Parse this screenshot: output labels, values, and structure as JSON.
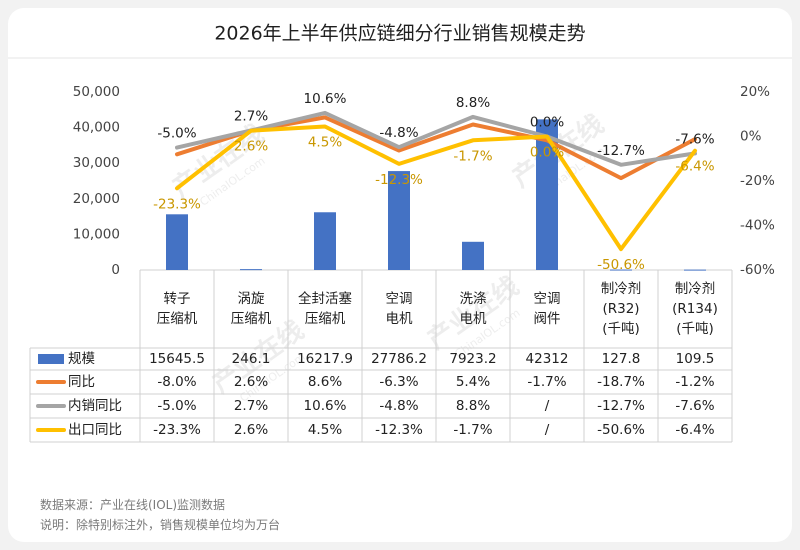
{
  "chart_data": {
    "type": "bar",
    "title": "2026年上半年供应链细分行业销售规模走势",
    "categories": [
      [
        "转子",
        "压缩机"
      ],
      [
        "涡旋",
        "压缩机"
      ],
      [
        "全封活塞",
        "压缩机"
      ],
      [
        "空调",
        "电机"
      ],
      [
        "洗涤",
        "电机"
      ],
      [
        "空调",
        "阀件"
      ],
      [
        "制冷剂",
        "(R32)",
        "(千吨)"
      ],
      [
        "制冷剂",
        "(R134)",
        "(千吨)"
      ]
    ],
    "y_left": {
      "min": 0,
      "max": 50000,
      "ticks": [
        "0",
        "10,000",
        "20,000",
        "30,000",
        "40,000",
        "50,000"
      ]
    },
    "y_right": {
      "min": -60,
      "max": 20,
      "ticks": [
        "-60%",
        "-40%",
        "-20%",
        "0%",
        "20%"
      ]
    },
    "series": [
      {
        "name": "规模",
        "kind": "bar",
        "axis": "left",
        "color": "#4472c4",
        "values": [
          15645.5,
          246.1,
          16217.9,
          27786.2,
          7923.2,
          42312,
          127.8,
          109.5
        ],
        "labels": [
          "15645.5",
          "246.1",
          "16217.9",
          "27786.2",
          "7923.2",
          "42312",
          "127.8",
          "109.5"
        ]
      },
      {
        "name": "同比",
        "kind": "line",
        "axis": "right",
        "color": "#ed7d31",
        "values": [
          -8.0,
          2.6,
          8.6,
          -6.3,
          5.4,
          -1.7,
          -18.7,
          -1.2
        ],
        "labels": [
          "-8.0%",
          "2.6%",
          "8.6%",
          "-6.3%",
          "5.4%",
          "-1.7%",
          "-18.7%",
          "-1.2%"
        ]
      },
      {
        "name": "内销同比",
        "kind": "line",
        "axis": "right",
        "color": "#a5a5a5",
        "values": [
          -5.0,
          2.7,
          10.6,
          -4.8,
          8.8,
          0.0,
          -12.7,
          -7.6
        ],
        "labels": [
          "-5.0%",
          "2.7%",
          "10.6%",
          "-4.8%",
          "8.8%",
          "/",
          "-12.7%",
          "-7.6%"
        ],
        "point_labels": [
          "-5.0%",
          "2.7%",
          "10.6%",
          "-4.8%",
          "8.8%",
          "0.0%",
          "-12.7%",
          "-7.6%"
        ]
      },
      {
        "name": "出口同比",
        "kind": "line",
        "axis": "right",
        "color": "#ffc000",
        "values": [
          -23.3,
          2.6,
          4.5,
          -12.3,
          -1.7,
          0.0,
          -50.6,
          -6.4
        ],
        "labels": [
          "-23.3%",
          "2.6%",
          "4.5%",
          "-12.3%",
          "-1.7%",
          "/",
          "-50.6%",
          "-6.4%"
        ],
        "point_labels": [
          "-23.3%",
          "2.6%",
          "4.5%",
          "-12.3%",
          "-1.7%",
          "0.0%",
          "-50.6%",
          "-6.4%"
        ]
      }
    ],
    "grid": false,
    "legend": "data-table"
  },
  "watermark": {
    "text": "产业在线",
    "sub": "ChinaIOL.com"
  },
  "notes": {
    "source": "数据来源：产业在线(IOL)监测数据",
    "explain": "说明：除特别标注外，销售规模单位均为万台"
  }
}
